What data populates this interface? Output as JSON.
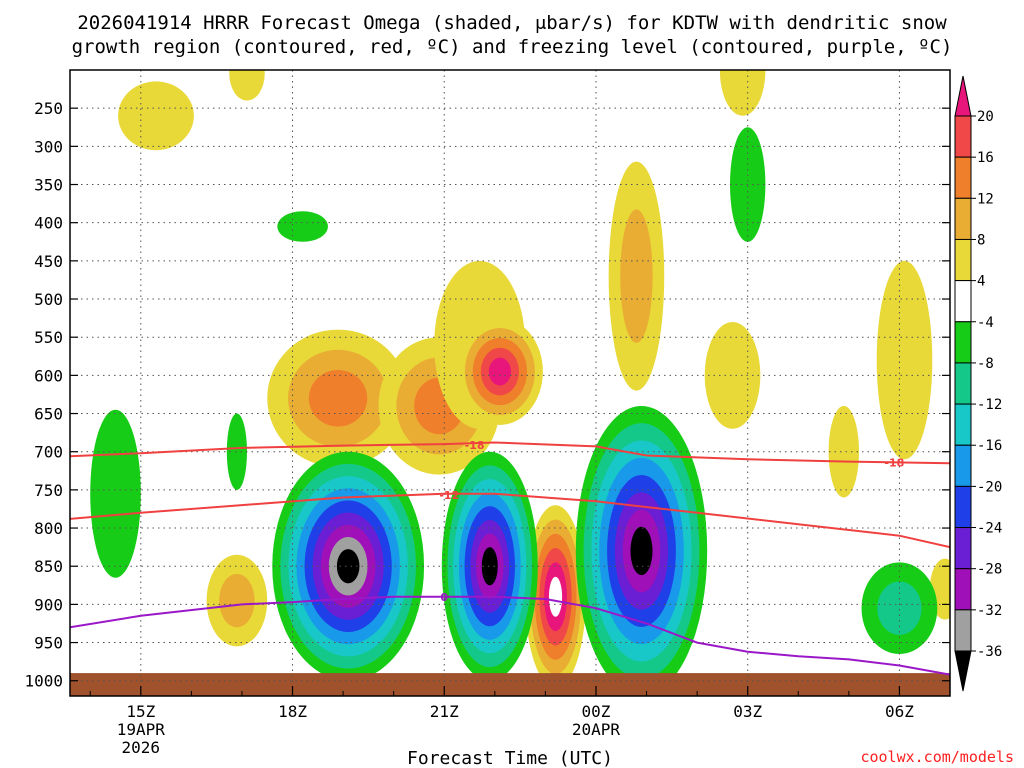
{
  "title_line1": "2026041914 HRRR Forecast Omega (shaded, μbar/s) for KDTW with dendritic snow",
  "title_line2": "growth region (contoured, red, ºC) and freezing level (contoured, purple, ºC)",
  "credit": "coolwx.com/models",
  "chart_data": {
    "type": "heatmap",
    "title": "2026041914 HRRR Forecast Omega (shaded, μbar/s) for KDTW with dendritic snow growth region (contoured, red, ºC) and freezing level (contoured, purple, ºC)",
    "xlabel": "Forecast Time (UTC)",
    "ylabel": "Pressure (hPa)",
    "xlim": [
      13.6,
      31.0
    ],
    "ylim": [
      1020,
      200
    ],
    "x_ticks": [
      {
        "x": 15,
        "label": "15Z",
        "date": "19APR",
        "year": "2026"
      },
      {
        "x": 18,
        "label": "18Z"
      },
      {
        "x": 21,
        "label": "21Z"
      },
      {
        "x": 24,
        "label": "00Z",
        "date": "20APR"
      },
      {
        "x": 27,
        "label": "03Z"
      },
      {
        "x": 30,
        "label": "06Z"
      }
    ],
    "y_ticks": [
      {
        "p": 250,
        "label": "250"
      },
      {
        "p": 300,
        "label": "300"
      },
      {
        "p": 350,
        "label": "350"
      },
      {
        "p": 400,
        "label": "400"
      },
      {
        "p": 450,
        "label": "450"
      },
      {
        "p": 500,
        "label": "500"
      },
      {
        "p": 550,
        "label": "550"
      },
      {
        "p": 600,
        "label": "600"
      },
      {
        "p": 650,
        "label": "650"
      },
      {
        "p": 700,
        "label": "700"
      },
      {
        "p": 750,
        "label": "750"
      },
      {
        "p": 800,
        "label": "800"
      },
      {
        "p": 850,
        "label": "850"
      },
      {
        "p": 900,
        "label": "900"
      },
      {
        "p": 950,
        "label": "950"
      },
      {
        "p": 1000,
        "label": "1000"
      }
    ],
    "grid": true,
    "colorbar": {
      "units": "μbar/s",
      "labels": [
        "20",
        "16",
        "12",
        "8",
        "4",
        "-4",
        "-8",
        "-12",
        "-16",
        "-20",
        "-24",
        "-28",
        "-32",
        "-36"
      ],
      "bins": [
        {
          "from": 20,
          "to": 24,
          "color": "#e8157a"
        },
        {
          "from": 16,
          "to": 20,
          "color": "#f04848"
        },
        {
          "from": 12,
          "to": 16,
          "color": "#ef7f2a"
        },
        {
          "from": 8,
          "to": 12,
          "color": "#e9ad34"
        },
        {
          "from": 4,
          "to": 8,
          "color": "#e8d938"
        },
        {
          "from": -4,
          "to": 4,
          "color": "#ffffff"
        },
        {
          "from": -8,
          "to": -4,
          "color": "#17cc17"
        },
        {
          "from": -12,
          "to": -8,
          "color": "#14c88a"
        },
        {
          "from": -16,
          "to": -12,
          "color": "#18c8c8"
        },
        {
          "from": -20,
          "to": -16,
          "color": "#1899ea"
        },
        {
          "from": -24,
          "to": -20,
          "color": "#1f3fe8"
        },
        {
          "from": -28,
          "to": -24,
          "color": "#6a1fd4"
        },
        {
          "from": -32,
          "to": -28,
          "color": "#a010b8"
        },
        {
          "from": -36,
          "to": -32,
          "color": "#a0a0a0"
        },
        {
          "from": -40,
          "to": -36,
          "color": "#000000"
        }
      ]
    },
    "ground_color": "#a0522d",
    "ground_pressure": 990,
    "omega_features": [
      {
        "x": 15.3,
        "p": 260,
        "rx": 0.75,
        "rp": 45,
        "levels": [
          4
        ]
      },
      {
        "x": 17.1,
        "p": 205,
        "rx": 0.35,
        "rp": 35,
        "levels": [
          4
        ]
      },
      {
        "x": 26.9,
        "p": 200,
        "rx": 0.45,
        "rp": 60,
        "levels": [
          4
        ]
      },
      {
        "x": 16.9,
        "p": 895,
        "rx": 0.6,
        "rp": 60,
        "levels": [
          4,
          8
        ]
      },
      {
        "x": 18.9,
        "p": 630,
        "rx": 1.4,
        "rp": 90,
        "levels": [
          4,
          8,
          12
        ]
      },
      {
        "x": 20.9,
        "p": 640,
        "rx": 1.2,
        "rp": 90,
        "levels": [
          4,
          8,
          12
        ]
      },
      {
        "x": 21.7,
        "p": 560,
        "rx": 0.9,
        "rp": 110,
        "levels": [
          4
        ]
      },
      {
        "x": 22.1,
        "p": 595,
        "rx": 0.85,
        "rp": 70,
        "levels": [
          4,
          8,
          12,
          16,
          20
        ]
      },
      {
        "x": 24.8,
        "p": 470,
        "rx": 0.55,
        "rp": 150,
        "levels": [
          4,
          8
        ]
      },
      {
        "x": 26.7,
        "p": 600,
        "rx": 0.55,
        "rp": 70,
        "levels": [
          4
        ]
      },
      {
        "x": 30.1,
        "p": 580,
        "rx": 0.55,
        "rp": 130,
        "levels": [
          4
        ]
      },
      {
        "x": 28.9,
        "p": 700,
        "rx": 0.3,
        "rp": 60,
        "levels": [
          4
        ]
      },
      {
        "x": 30.9,
        "p": 880,
        "rx": 0.3,
        "rp": 40,
        "levels": [
          4
        ]
      },
      {
        "x": 23.2,
        "p": 890,
        "rx": 0.6,
        "rp": 120,
        "levels": [
          4,
          8,
          12,
          16,
          20,
          24
        ]
      },
      {
        "x": 14.5,
        "p": 755,
        "rx": 0.5,
        "rp": 110,
        "levels": [
          -4
        ]
      },
      {
        "x": 16.9,
        "p": 700,
        "rx": 0.2,
        "rp": 50,
        "levels": [
          -4
        ]
      },
      {
        "x": 18.2,
        "p": 405,
        "rx": 0.5,
        "rp": 20,
        "levels": [
          -4
        ]
      },
      {
        "x": 27.0,
        "p": 350,
        "rx": 0.35,
        "rp": 75,
        "levels": [
          -4
        ]
      },
      {
        "x": 30.0,
        "p": 905,
        "rx": 0.75,
        "rp": 60,
        "levels": [
          -4,
          -8
        ]
      },
      {
        "x": 19.1,
        "p": 850,
        "rx": 1.5,
        "rp": 150,
        "levels": [
          -4,
          -8,
          -12,
          -16,
          -20,
          -24,
          -28,
          -32,
          -36
        ]
      },
      {
        "x": 21.9,
        "p": 850,
        "rx": 0.95,
        "rp": 150,
        "levels": [
          -4,
          -8,
          -12,
          -16,
          -20,
          -24,
          -28,
          -36
        ]
      },
      {
        "x": 24.9,
        "p": 830,
        "rx": 1.3,
        "rp": 190,
        "levels": [
          -4,
          -8,
          -12,
          -16,
          -20,
          -24,
          -28,
          -36
        ]
      }
    ],
    "series": [
      {
        "name": "-18 ºC",
        "color": "#f04040",
        "label": "-18",
        "label_at": [
          [
            21.6,
            691
          ],
          [
            29.9,
            714
          ]
        ],
        "points": [
          [
            13.6,
            706
          ],
          [
            15,
            702
          ],
          [
            17,
            695
          ],
          [
            19,
            692
          ],
          [
            21,
            690
          ],
          [
            22,
            688
          ],
          [
            24,
            693
          ],
          [
            25,
            705
          ],
          [
            27,
            710
          ],
          [
            29,
            713
          ],
          [
            31,
            715
          ]
        ]
      },
      {
        "name": "-12 ºC",
        "color": "#f04040",
        "label": "-12",
        "label_at": [
          [
            21.1,
            757
          ]
        ],
        "points": [
          [
            13.6,
            788
          ],
          [
            15,
            780
          ],
          [
            17,
            770
          ],
          [
            19,
            760
          ],
          [
            21,
            755
          ],
          [
            22,
            755
          ],
          [
            24,
            765
          ],
          [
            26,
            780
          ],
          [
            28,
            795
          ],
          [
            30,
            810
          ],
          [
            31,
            825
          ]
        ]
      },
      {
        "name": "0 ºC (freezing level)",
        "color": "#9a18c8",
        "label": "0",
        "label_at": [
          [
            21.0,
            890
          ]
        ],
        "points": [
          [
            13.6,
            930
          ],
          [
            15,
            915
          ],
          [
            17,
            900
          ],
          [
            18,
            897
          ],
          [
            19,
            893
          ],
          [
            20,
            890
          ],
          [
            21,
            890
          ],
          [
            22,
            890
          ],
          [
            23,
            893
          ],
          [
            24,
            905
          ],
          [
            25,
            925
          ],
          [
            26,
            950
          ],
          [
            27,
            962
          ],
          [
            28,
            968
          ],
          [
            29,
            972
          ],
          [
            30,
            980
          ],
          [
            31,
            992
          ]
        ]
      }
    ]
  }
}
